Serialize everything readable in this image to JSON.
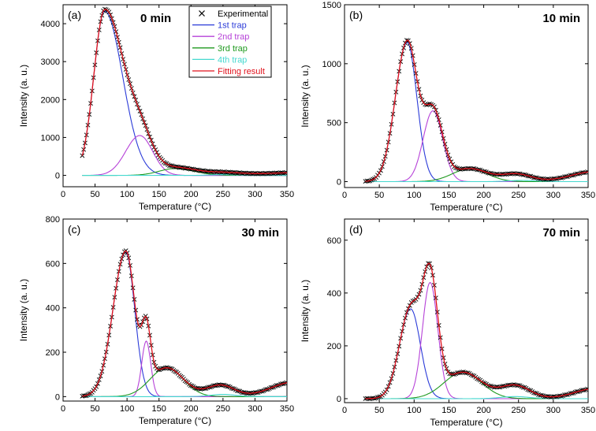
{
  "figure": {
    "xlabel": "Temperature (°C)",
    "ylabel": "Intensity (a. u.)"
  },
  "legend": {
    "position": "top-right of panel (a)",
    "entries": [
      {
        "label": "Experimental",
        "color": "#000000",
        "marker": "cross"
      },
      {
        "label": "1st trap",
        "color": "#2b3bd8"
      },
      {
        "label": "2nd trap",
        "color": "#b642d8"
      },
      {
        "label": "3rd trap",
        "color": "#1f9a1f"
      },
      {
        "label": "4th trap",
        "color": "#45d8cf"
      },
      {
        "label": "Fitting result",
        "color": "#e0121c"
      }
    ]
  },
  "chart_data": [
    {
      "type": "line",
      "panel_label": "(a)",
      "title": "0 min",
      "xlabel": "Temperature (°C)",
      "ylabel": "Intensity (a. u.)",
      "xlim": [
        0,
        350
      ],
      "ylim": [
        -300,
        4500
      ],
      "xticks": [
        0,
        50,
        100,
        150,
        200,
        250,
        300,
        350
      ],
      "yticks": [
        0,
        1000,
        2000,
        3000,
        4000
      ],
      "exp_range": [
        30,
        350
      ],
      "background": [
        {
          "x": 250,
          "a": 60,
          "s": 55
        },
        {
          "x": 360,
          "a": 60,
          "s": 30
        }
      ],
      "series": [
        {
          "name": "1st trap",
          "peak_x": 65,
          "peak_y": 4330,
          "width_left": 17,
          "width_right": 28
        },
        {
          "name": "2nd trap",
          "peak_x": 120,
          "peak_y": 1050,
          "width_left": 22,
          "width_right": 20
        },
        {
          "name": "3rd trap",
          "peak_x": 175,
          "peak_y": 180,
          "width_left": 25,
          "width_right": 30
        },
        {
          "name": "4th trap",
          "peak_x": 250,
          "peak_y": 20,
          "width_left": 20,
          "width_right": 20
        }
      ]
    },
    {
      "type": "line",
      "panel_label": "(b)",
      "title": "10 min",
      "xlabel": "Temperature (°C)",
      "ylabel": "Intensity (a. u.)",
      "xlim": [
        0,
        350
      ],
      "ylim": [
        -50,
        1500
      ],
      "xticks": [
        0,
        50,
        100,
        150,
        200,
        250,
        300,
        350
      ],
      "yticks": [
        0,
        500,
        1000,
        1500
      ],
      "exp_range": [
        30,
        350
      ],
      "background": [
        {
          "x": 245,
          "a": 55,
          "s": 22
        },
        {
          "x": 360,
          "a": 85,
          "s": 35
        }
      ],
      "series": [
        {
          "name": "1st trap",
          "peak_x": 90,
          "peak_y": 1180,
          "width_left": 17,
          "width_right": 14
        },
        {
          "name": "2nd trap",
          "peak_x": 127,
          "peak_y": 600,
          "width_left": 14,
          "width_right": 14
        },
        {
          "name": "3rd trap",
          "peak_x": 180,
          "peak_y": 110,
          "width_left": 25,
          "width_right": 25
        },
        {
          "name": "4th trap",
          "peak_x": 255,
          "peak_y": 10,
          "width_left": 20,
          "width_right": 20
        }
      ]
    },
    {
      "type": "line",
      "panel_label": "(c)",
      "title": "30 min",
      "xlabel": "Temperature (°C)",
      "ylabel": "Intensity (a. u.)",
      "xlim": [
        0,
        350
      ],
      "ylim": [
        -20,
        800
      ],
      "xticks": [
        0,
        50,
        100,
        150,
        200,
        250,
        300,
        350
      ],
      "yticks": [
        0,
        200,
        400,
        600,
        800
      ],
      "exp_range": [
        30,
        350
      ],
      "background": [
        {
          "x": 245,
          "a": 42,
          "s": 22
        },
        {
          "x": 360,
          "a": 65,
          "s": 35
        }
      ],
      "series": [
        {
          "name": "1st trap",
          "peak_x": 98,
          "peak_y": 650,
          "width_left": 20,
          "width_right": 14
        },
        {
          "name": "2nd trap",
          "peak_x": 130,
          "peak_y": 250,
          "width_left": 7,
          "width_right": 7
        },
        {
          "name": "3rd trap",
          "peak_x": 162,
          "peak_y": 130,
          "width_left": 26,
          "width_right": 26
        },
        {
          "name": "4th trap",
          "peak_x": 250,
          "peak_y": 10,
          "width_left": 20,
          "width_right": 20
        }
      ]
    },
    {
      "type": "line",
      "panel_label": "(d)",
      "title": "70 min",
      "xlabel": "Temperature (°C)",
      "ylabel": "Intensity (a. u.)",
      "xlim": [
        0,
        350
      ],
      "ylim": [
        -15,
        680
      ],
      "xticks": [
        0,
        50,
        100,
        150,
        200,
        250,
        300,
        350
      ],
      "yticks": [
        0,
        200,
        400,
        600
      ],
      "exp_range": [
        30,
        350
      ],
      "background": [
        {
          "x": 245,
          "a": 42,
          "s": 22
        },
        {
          "x": 360,
          "a": 38,
          "s": 30
        }
      ],
      "series": [
        {
          "name": "1st trap",
          "peak_x": 95,
          "peak_y": 340,
          "width_left": 16,
          "width_right": 14
        },
        {
          "name": "2nd trap",
          "peak_x": 123,
          "peak_y": 440,
          "width_left": 11,
          "width_right": 11
        },
        {
          "name": "3rd trap",
          "peak_x": 170,
          "peak_y": 100,
          "width_left": 27,
          "width_right": 27
        },
        {
          "name": "4th trap",
          "peak_x": 245,
          "peak_y": 8,
          "width_left": 20,
          "width_right": 20
        }
      ]
    }
  ]
}
